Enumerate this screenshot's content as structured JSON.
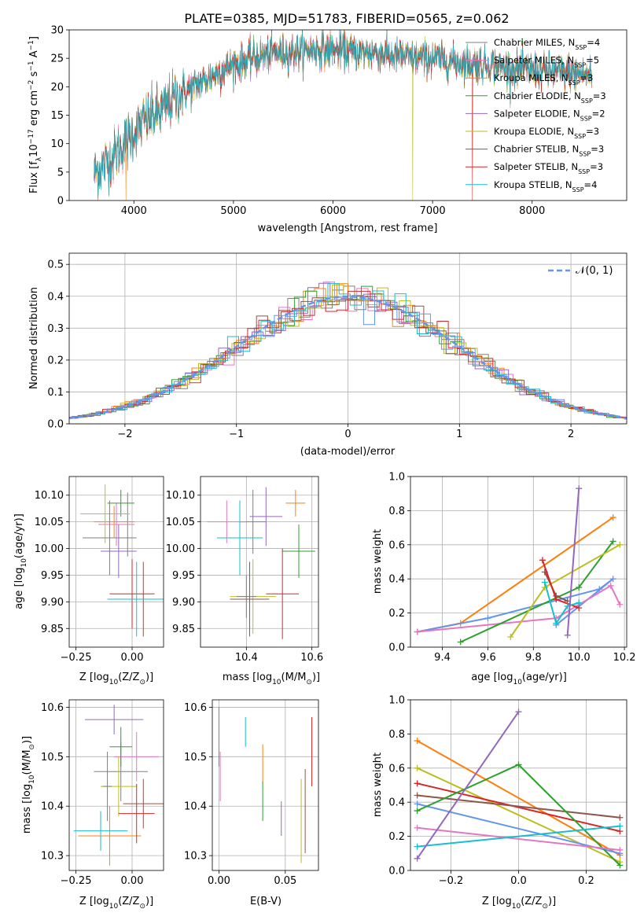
{
  "figure": {
    "title": "PLATE=0385, MJD=51783, FIBERID=0565, z=0.062"
  },
  "colors": {
    "models": [
      "#7f7f7f",
      "#e377c2",
      "#ff7f0e",
      "#2ca02c",
      "#9467bd",
      "#bcbd22",
      "#8c564b",
      "#d62728",
      "#17becf"
    ],
    "gaussian": "#6495ed",
    "grid": "#b0b0b0"
  },
  "chart_data": [
    {
      "id": "spectrum",
      "type": "line",
      "xlabel": "wavelength [Angstrom, rest frame]",
      "ylabel": "Flux [f",
      "ylabel_parts": [
        "Flux [f",
        "λ",
        "10",
        "−17",
        " erg cm",
        "−2",
        " s",
        "−1",
        " A",
        "−1",
        "]"
      ],
      "xlim": [
        3350,
        8950
      ],
      "ylim": [
        0,
        30
      ],
      "xticks": [
        4000,
        5000,
        6000,
        7000,
        8000
      ],
      "yticks": [
        0,
        5,
        10,
        15,
        20,
        25,
        30
      ],
      "grid": false,
      "legend_position": "right",
      "continuum": {
        "x": [
          3600,
          3700,
          3800,
          3900,
          4000,
          4100,
          4200,
          4300,
          4400,
          4500,
          4600,
          4700,
          4800,
          4900,
          5000,
          5200,
          5400,
          5600,
          5800,
          6000,
          6200,
          6400,
          6600,
          6800,
          7000,
          7200,
          7400,
          7600,
          7800,
          8000,
          8200,
          8400,
          8600
        ],
        "y": [
          5,
          6,
          8,
          10,
          12,
          14,
          15,
          16,
          18,
          19,
          20,
          21,
          22,
          23,
          24,
          25,
          26,
          26,
          26.5,
          26.5,
          26,
          26,
          25.5,
          25,
          25,
          24.5,
          24,
          24,
          23,
          23,
          22.5,
          22.5,
          22
        ]
      },
      "series": [
        {
          "name": "Chabrier MILES",
          "n_ssp": "4"
        },
        {
          "name": "Salpeter MILES",
          "n_ssp": "5"
        },
        {
          "name": "Kroupa MILES",
          "n_ssp": "3"
        },
        {
          "name": "Chabrier ELODIE",
          "n_ssp": "3"
        },
        {
          "name": "Salpeter ELODIE",
          "n_ssp": "2"
        },
        {
          "name": "Kroupa ELODIE",
          "n_ssp": "3"
        },
        {
          "name": "Chabrier STELIB",
          "n_ssp": "3"
        },
        {
          "name": "Salpeter STELIB",
          "n_ssp": "3"
        },
        {
          "name": "Kroupa STELIB",
          "n_ssp": "4"
        }
      ],
      "legend_n_label": "N",
      "legend_n_sub": "SSP"
    },
    {
      "id": "residuals",
      "type": "histogram",
      "xlabel": "(data-model)/error",
      "ylabel": "Normed distribution",
      "xlim": [
        -2.5,
        2.5
      ],
      "ylim": [
        0,
        0.535
      ],
      "xticks": [
        -2,
        -1,
        0,
        1,
        2
      ],
      "yticks": [
        0,
        0.1,
        0.2,
        0.3,
        0.4,
        0.5
      ],
      "grid": true,
      "bin_width": 0.1,
      "legend_position": "top-right",
      "gaussian_label": "𝒩(0, 1)"
    },
    {
      "id": "age-vs-z",
      "type": "errorbar",
      "xlabel": "Z [log",
      "xlabel_parts": [
        "Z [log",
        "10",
        "(Z/Z",
        "⊙",
        ")]"
      ],
      "ylabel_parts": [
        "age  [log",
        "10",
        "(age/yr)]"
      ],
      "xlim": [
        -0.28,
        0.14
      ],
      "ylim": [
        9.815,
        10.135
      ],
      "xticks": [
        -0.25,
        0.0
      ],
      "ytick_values": [
        9.85,
        9.9,
        9.95,
        10.0,
        10.05,
        10.1
      ],
      "grid": true,
      "points": [
        {
          "x": -0.02,
          "xerr": 0.03,
          "y": 10.045,
          "yerr": 0.06
        },
        {
          "x": -0.07,
          "xerr": 0.08,
          "y": 10.045,
          "yerr": 0.04
        },
        {
          "x": -0.08,
          "xerr": 0.09,
          "y": 10.05,
          "yerr": 0.03
        },
        {
          "x": -0.05,
          "xerr": 0.06,
          "y": 10.085,
          "yerr": 0.025
        },
        {
          "x": -0.06,
          "xerr": 0.08,
          "y": 9.995,
          "yerr": 0.05
        },
        {
          "x": -0.12,
          "xerr": 0.11,
          "y": 10.065,
          "yerr": 0.055
        },
        {
          "x": 0.05,
          "xerr": 0.1,
          "y": 9.905,
          "yerr": 0.07
        },
        {
          "x": 0.0,
          "xerr": 0.1,
          "y": 9.915,
          "yerr": 0.065
        },
        {
          "x": 0.02,
          "xerr": 0.13,
          "y": 9.905,
          "yerr": 0.07
        },
        {
          "x": -0.1,
          "xerr": 0.12,
          "y": 10.02,
          "yerr": 0.07
        }
      ]
    },
    {
      "id": "age-vs-mass",
      "type": "errorbar",
      "xlabel_parts": [
        "mass [log",
        "10",
        "(M/M",
        "⊙",
        ")]"
      ],
      "xlim": [
        10.26,
        10.62
      ],
      "ylim": [
        9.815,
        10.135
      ],
      "xticks": [
        10.4,
        10.6
      ],
      "ytick_values": [
        9.85,
        9.9,
        9.95,
        10.0,
        10.05,
        10.1
      ],
      "grid": true,
      "points": [
        {
          "x": 10.42,
          "xerr": 0.04,
          "y": 10.05,
          "yerr": 0.06
        },
        {
          "x": 10.34,
          "xerr": 0.06,
          "y": 10.05,
          "yerr": 0.04
        },
        {
          "x": 10.55,
          "xerr": 0.03,
          "y": 10.085,
          "yerr": 0.025
        },
        {
          "x": 10.56,
          "xerr": 0.05,
          "y": 9.995,
          "yerr": 0.05
        },
        {
          "x": 10.46,
          "xerr": 0.05,
          "y": 10.06,
          "yerr": 0.055
        },
        {
          "x": 10.42,
          "xerr": 0.07,
          "y": 9.91,
          "yerr": 0.07
        },
        {
          "x": 10.41,
          "xerr": 0.06,
          "y": 9.905,
          "yerr": 0.07
        },
        {
          "x": 10.51,
          "xerr": 0.05,
          "y": 9.915,
          "yerr": 0.085
        },
        {
          "x": 10.38,
          "xerr": 0.07,
          "y": 10.02,
          "yerr": 0.07
        },
        {
          "x": 10.4,
          "xerr": 0.03,
          "y": 9.91,
          "yerr": 0.04
        }
      ]
    },
    {
      "id": "weight-vs-age",
      "type": "line",
      "xlabel_parts": [
        "age  [log",
        "10",
        "(age/yr)]"
      ],
      "ylabel": "mass weight",
      "xlim": [
        9.26,
        10.21
      ],
      "ylim": [
        0,
        1.0
      ],
      "xticks": [
        9.4,
        9.6,
        9.8,
        10.0,
        10.2
      ],
      "yticks": [
        0.0,
        0.2,
        0.4,
        0.6,
        0.8,
        1.0
      ],
      "grid": true,
      "lines": [
        {
          "color": "#ff7f0e",
          "points": [
            [
              9.29,
              0.09
            ],
            [
              9.48,
              0.14
            ],
            [
              10.15,
              0.76
            ]
          ]
        },
        {
          "color": "#6495ed",
          "points": [
            [
              9.29,
              0.09
            ],
            [
              9.6,
              0.17
            ],
            [
              10.09,
              0.34
            ],
            [
              10.15,
              0.4
            ],
            [
              9.9,
              0.13
            ]
          ]
        },
        {
          "color": "#e377c2",
          "points": [
            [
              9.29,
              0.09
            ],
            [
              9.9,
              0.17
            ],
            [
              10.14,
              0.36
            ],
            [
              10.18,
              0.25
            ]
          ]
        },
        {
          "color": "#2ca02c",
          "points": [
            [
              9.48,
              0.03
            ],
            [
              10.0,
              0.35
            ],
            [
              10.15,
              0.62
            ]
          ]
        },
        {
          "color": "#bcbd22",
          "points": [
            [
              9.7,
              0.06
            ],
            [
              9.85,
              0.35
            ],
            [
              10.18,
              0.6
            ]
          ]
        },
        {
          "color": "#8c564b",
          "points": [
            [
              9.85,
              0.44
            ],
            [
              9.9,
              0.3
            ],
            [
              9.95,
              0.27
            ]
          ]
        },
        {
          "color": "#d62728",
          "points": [
            [
              9.84,
              0.51
            ],
            [
              9.9,
              0.28
            ],
            [
              10.0,
              0.23
            ]
          ]
        },
        {
          "color": "#17becf",
          "points": [
            [
              9.85,
              0.38
            ],
            [
              9.9,
              0.14
            ],
            [
              9.95,
              0.24
            ],
            [
              10.0,
              0.26
            ]
          ]
        },
        {
          "color": "#9467bd",
          "points": [
            [
              9.95,
              0.07
            ],
            [
              10.0,
              0.93
            ]
          ]
        }
      ]
    },
    {
      "id": "mass-vs-z",
      "type": "errorbar",
      "xlabel_parts": [
        "Z [log",
        "10",
        "(Z/Z",
        "⊙",
        ")]"
      ],
      "ylabel_parts": [
        "mass [log",
        "10",
        "(M/M",
        "⊙",
        ")]"
      ],
      "xlim": [
        -0.28,
        0.14
      ],
      "ylim": [
        10.27,
        10.615
      ],
      "xticks": [
        -0.25,
        0.0
      ],
      "ytick_values": [
        10.3,
        10.4,
        10.5,
        10.6
      ],
      "grid": true,
      "points": [
        {
          "x": -0.05,
          "xerr": 0.12,
          "y": 10.47,
          "yerr": 0.06
        },
        {
          "x": 0.02,
          "xerr": 0.1,
          "y": 10.5,
          "yerr": 0.05
        },
        {
          "x": -0.1,
          "xerr": 0.14,
          "y": 10.34,
          "yerr": 0.06
        },
        {
          "x": -0.05,
          "xerr": 0.05,
          "y": 10.52,
          "yerr": 0.04
        },
        {
          "x": -0.08,
          "xerr": 0.13,
          "y": 10.575,
          "yerr": 0.03
        },
        {
          "x": -0.06,
          "xerr": 0.08,
          "y": 10.44,
          "yerr": 0.06
        },
        {
          "x": 0.05,
          "xerr": 0.09,
          "y": 10.405,
          "yerr": 0.05
        },
        {
          "x": 0.02,
          "xerr": 0.08,
          "y": 10.385,
          "yerr": 0.06
        },
        {
          "x": -0.14,
          "xerr": 0.12,
          "y": 10.35,
          "yerr": 0.04
        },
        {
          "x": -0.11,
          "xerr": 0.02,
          "y": 10.44,
          "yerr": 0.07
        }
      ]
    },
    {
      "id": "mass-vs-ebv",
      "type": "errorbar",
      "xlabel": "E(B-V)",
      "xlim": [
        -0.005,
        0.075
      ],
      "ylim": [
        10.27,
        10.615
      ],
      "xticks": [
        0.0,
        0.05
      ],
      "ytick_values": [
        10.3,
        10.4,
        10.5,
        10.6
      ],
      "grid": true,
      "points": [
        {
          "x": 0.0,
          "xerr": 0,
          "y": 10.54,
          "yerr": 0.06
        },
        {
          "x": 0.001,
          "xerr": 0,
          "y": 10.46,
          "yerr": 0.05
        },
        {
          "x": 0.033,
          "xerr": 0,
          "y": 10.485,
          "yerr": 0.04
        },
        {
          "x": 0.033,
          "xerr": 0,
          "y": 10.41,
          "yerr": 0.04
        },
        {
          "x": 0.047,
          "xerr": 0,
          "y": 10.375,
          "yerr": 0.035
        },
        {
          "x": 0.062,
          "xerr": 0,
          "y": 10.37,
          "yerr": 0.085
        },
        {
          "x": 0.065,
          "xerr": 0,
          "y": 10.39,
          "yerr": 0.085
        },
        {
          "x": 0.07,
          "xerr": 0,
          "y": 10.51,
          "yerr": 0.07
        },
        {
          "x": 0.02,
          "xerr": 0,
          "y": 10.55,
          "yerr": 0.03
        }
      ]
    },
    {
      "id": "weight-vs-z",
      "type": "line",
      "xlabel_parts": [
        "Z [log",
        "10",
        "(Z/Z",
        "⊙",
        ")]"
      ],
      "ylabel": "mass weight",
      "xlim": [
        -0.32,
        0.32
      ],
      "ylim": [
        0,
        1.0
      ],
      "xticks": [
        -0.2,
        0.0,
        0.2
      ],
      "yticks": [
        0.0,
        0.2,
        0.4,
        0.6,
        0.8,
        1.0
      ],
      "grid": true,
      "lines": [
        {
          "color": "#ff7f0e",
          "points": [
            [
              -0.3,
              0.76
            ],
            [
              0.3,
              0.09
            ]
          ]
        },
        {
          "color": "#bcbd22",
          "points": [
            [
              -0.3,
              0.6
            ],
            [
              0.3,
              0.05
            ]
          ]
        },
        {
          "color": "#d62728",
          "points": [
            [
              -0.3,
              0.51
            ],
            [
              0.3,
              0.23
            ]
          ]
        },
        {
          "color": "#8c564b",
          "points": [
            [
              -0.3,
              0.44
            ],
            [
              0.3,
              0.31
            ]
          ]
        },
        {
          "color": "#6495ed",
          "points": [
            [
              -0.3,
              0.39
            ],
            [
              0.3,
              0.1
            ]
          ]
        },
        {
          "color": "#2ca02c",
          "points": [
            [
              -0.3,
              0.35
            ],
            [
              0.0,
              0.62
            ],
            [
              0.3,
              0.03
            ]
          ]
        },
        {
          "color": "#e377c2",
          "points": [
            [
              -0.3,
              0.25
            ],
            [
              0.3,
              0.12
            ]
          ]
        },
        {
          "color": "#17becf",
          "points": [
            [
              -0.3,
              0.14
            ],
            [
              0.3,
              0.26
            ]
          ]
        },
        {
          "color": "#9467bd",
          "points": [
            [
              -0.3,
              0.07
            ],
            [
              0.0,
              0.93
            ]
          ]
        }
      ]
    }
  ]
}
